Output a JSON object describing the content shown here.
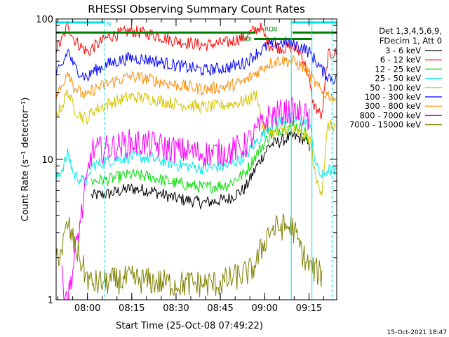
{
  "chart_data": {
    "type": "line",
    "title": "RHESSI Observing Summary Count Rates",
    "xlabel": "Start Time (25-Oct-08 07:49:22)",
    "ylabel": "Count Rate (s⁻¹ detector⁻¹)",
    "y_scale": "log",
    "ylim": [
      1,
      100
    ],
    "xlim_minutes": [
      0,
      95
    ],
    "x_ticks": [
      {
        "label": "08:00",
        "minutes": 10.6
      },
      {
        "label": "08:15",
        "minutes": 25.6
      },
      {
        "label": "08:30",
        "minutes": 40.6
      },
      {
        "label": "08:45",
        "minutes": 55.6
      },
      {
        "label": "09:00",
        "minutes": 70.6
      },
      {
        "label": "09:15",
        "minutes": 85.6
      }
    ],
    "y_tick_labels": [
      "1",
      "10",
      "100"
    ],
    "legend_header": [
      "Det 1,3,4,5,6,9,",
      "FDecim 1, Att 0"
    ],
    "legend_placement": "right",
    "series": [
      {
        "name": "3 - 6 keV",
        "color": "#000000",
        "values": [
          [
            12,
            5.5
          ],
          [
            18,
            5.7
          ],
          [
            25,
            6.2
          ],
          [
            32,
            6.0
          ],
          [
            40,
            5.3
          ],
          [
            50,
            4.9
          ],
          [
            58,
            5.2
          ],
          [
            64,
            6.2
          ],
          [
            68,
            9.0
          ],
          [
            72,
            12.5
          ],
          [
            76,
            13.5
          ],
          [
            80,
            14.5
          ],
          [
            84,
            14.0
          ],
          [
            86,
            12.0
          ]
        ]
      },
      {
        "name": "6 - 12 keV",
        "color": "#ff0000",
        "values": [
          [
            0,
            62
          ],
          [
            2,
            70
          ],
          [
            4,
            92
          ],
          [
            6,
            72
          ],
          [
            9,
            62
          ],
          [
            11,
            58
          ],
          [
            12,
            62
          ],
          [
            18,
            75
          ],
          [
            25,
            82
          ],
          [
            32,
            78
          ],
          [
            40,
            70
          ],
          [
            50,
            65
          ],
          [
            58,
            68
          ],
          [
            64,
            75
          ],
          [
            68,
            85
          ],
          [
            69,
            88
          ],
          [
            72,
            66
          ],
          [
            76,
            62
          ],
          [
            80,
            63
          ],
          [
            83,
            57
          ],
          [
            85,
            42
          ],
          [
            87,
            25
          ],
          [
            90,
            20
          ],
          [
            92,
            55
          ],
          [
            95,
            58
          ]
        ]
      },
      {
        "name": "12 - 25 keV",
        "color": "#00dd00",
        "values": [
          [
            12,
            7.0
          ],
          [
            18,
            7.2
          ],
          [
            25,
            7.8
          ],
          [
            32,
            7.5
          ],
          [
            40,
            6.8
          ],
          [
            50,
            6.3
          ],
          [
            58,
            6.6
          ],
          [
            64,
            8.0
          ],
          [
            68,
            11.0
          ],
          [
            72,
            14.5
          ],
          [
            76,
            16.5
          ],
          [
            80,
            17.5
          ],
          [
            84,
            16.5
          ],
          [
            86,
            12.0
          ]
        ]
      },
      {
        "name": "25 - 50 keV",
        "color": "#00e8e8",
        "values": [
          [
            0,
            7.2
          ],
          [
            2,
            8.5
          ],
          [
            4,
            11.0
          ],
          [
            6,
            7.8
          ],
          [
            9,
            7.0
          ],
          [
            11,
            7.0
          ],
          [
            12,
            9.0
          ],
          [
            18,
            9.8
          ],
          [
            25,
            10.5
          ],
          [
            32,
            10.2
          ],
          [
            40,
            9.3
          ],
          [
            50,
            8.6
          ],
          [
            58,
            9.0
          ],
          [
            64,
            10.5
          ],
          [
            68,
            13.5
          ],
          [
            72,
            17.0
          ],
          [
            76,
            19.0
          ],
          [
            80,
            19.5
          ],
          [
            84,
            18.5
          ],
          [
            86,
            17.0
          ],
          [
            88,
            9.0
          ],
          [
            90,
            7.5
          ],
          [
            92,
            8.5
          ],
          [
            95,
            8.0
          ]
        ]
      },
      {
        "name": "50 - 100 keV",
        "color": "#d6c400",
        "values": [
          [
            0,
            21
          ],
          [
            2,
            24
          ],
          [
            4,
            31
          ],
          [
            6,
            23
          ],
          [
            9,
            20
          ],
          [
            11,
            19.5
          ],
          [
            12,
            22
          ],
          [
            18,
            25
          ],
          [
            25,
            28
          ],
          [
            32,
            27
          ],
          [
            40,
            25
          ],
          [
            50,
            23.5
          ],
          [
            58,
            24.5
          ],
          [
            64,
            26
          ],
          [
            68,
            29
          ],
          [
            70,
            17
          ],
          [
            74,
            15
          ],
          [
            78,
            16.5
          ],
          [
            82,
            15.5
          ],
          [
            86,
            14
          ],
          [
            88,
            7.0
          ],
          [
            90,
            6.0
          ],
          [
            92,
            17.5
          ],
          [
            95,
            17
          ]
        ]
      },
      {
        "name": "100 - 300 keV",
        "color": "#0000ff",
        "values": [
          [
            0,
            40
          ],
          [
            2,
            46
          ],
          [
            4,
            60
          ],
          [
            6,
            46
          ],
          [
            9,
            40
          ],
          [
            11,
            38
          ],
          [
            12,
            42
          ],
          [
            18,
            48
          ],
          [
            25,
            53
          ],
          [
            32,
            51
          ],
          [
            40,
            47
          ],
          [
            50,
            43
          ],
          [
            58,
            45
          ],
          [
            64,
            49
          ],
          [
            68,
            57
          ],
          [
            72,
            65
          ],
          [
            76,
            68
          ],
          [
            80,
            67
          ],
          [
            84,
            62
          ],
          [
            86,
            57
          ],
          [
            88,
            50
          ],
          [
            90,
            43
          ],
          [
            92,
            39
          ],
          [
            95,
            37
          ]
        ]
      },
      {
        "name": "300 - 800 keV",
        "color": "#ff8c00",
        "values": [
          [
            0,
            28
          ],
          [
            2,
            33
          ],
          [
            4,
            44
          ],
          [
            6,
            33
          ],
          [
            9,
            29
          ],
          [
            11,
            28
          ],
          [
            12,
            31
          ],
          [
            18,
            35
          ],
          [
            25,
            39
          ],
          [
            32,
            37
          ],
          [
            40,
            34
          ],
          [
            50,
            31.5
          ],
          [
            58,
            33
          ],
          [
            64,
            36
          ],
          [
            68,
            42
          ],
          [
            72,
            48
          ],
          [
            76,
            51
          ],
          [
            80,
            50
          ],
          [
            84,
            45
          ],
          [
            86,
            40
          ],
          [
            88,
            34
          ],
          [
            90,
            30
          ],
          [
            92,
            29
          ],
          [
            95,
            27
          ]
        ]
      },
      {
        "name": "800 - 7000 keV",
        "color": "#ff00ff",
        "values": [
          [
            2,
            1.4
          ],
          [
            3,
            1.2
          ],
          [
            4,
            1.0
          ],
          [
            12,
            11.5
          ],
          [
            18,
            12.0
          ],
          [
            25,
            13.2
          ],
          [
            32,
            12.8
          ],
          [
            40,
            11.8
          ],
          [
            50,
            10.9
          ],
          [
            58,
            11.3
          ],
          [
            64,
            12.5
          ],
          [
            68,
            16.0
          ],
          [
            72,
            20.0
          ],
          [
            76,
            21.5
          ],
          [
            80,
            22.0
          ],
          [
            84,
            21.0
          ],
          [
            86,
            18.5
          ]
        ]
      },
      {
        "name": "7000 - 15000 keV",
        "color": "#808000",
        "values": [
          [
            0,
            2.0
          ],
          [
            2,
            2.3
          ],
          [
            4,
            3.5
          ],
          [
            6,
            2.5
          ],
          [
            8,
            2.0
          ],
          [
            10,
            1.5
          ],
          [
            12,
            1.3
          ],
          [
            25,
            1.4
          ],
          [
            40,
            1.3
          ],
          [
            55,
            1.3
          ],
          [
            66,
            1.6
          ],
          [
            68,
            1.9
          ],
          [
            72,
            3.1
          ],
          [
            76,
            3.3
          ],
          [
            80,
            3.3
          ],
          [
            84,
            2.0
          ],
          [
            86,
            1.7
          ],
          [
            88,
            1.6
          ],
          [
            90,
            1.5
          ]
        ]
      }
    ],
    "annotations": [
      {
        "text": "N",
        "x_minutes": 17.0,
        "y": 100
      },
      {
        "text": "RD0",
        "x_minutes": 70.5,
        "y": 80
      },
      {
        "text": "RDI",
        "x_minutes": 62.5,
        "y": 68
      }
    ],
    "vertical_markers_minutes": [
      16.5,
      79.6,
      86.6,
      93.4
    ],
    "marker_color": "#00e0e0",
    "state_bars": [
      {
        "color": "#00e0e0",
        "y": 100,
        "from": 0,
        "to": 16.5
      },
      {
        "color": "#00e0e0",
        "y": 100,
        "from": 79.6,
        "to": 95
      },
      {
        "color": "#008000",
        "y": 80,
        "from": 0,
        "to": 67.5
      },
      {
        "color": "#008000",
        "y": 80,
        "from": 80.0,
        "to": 95
      },
      {
        "color": "#008000",
        "y": 72,
        "from": 67.0,
        "to": 86.5
      }
    ],
    "footer_date": "15-Oct-2021 18:47"
  }
}
